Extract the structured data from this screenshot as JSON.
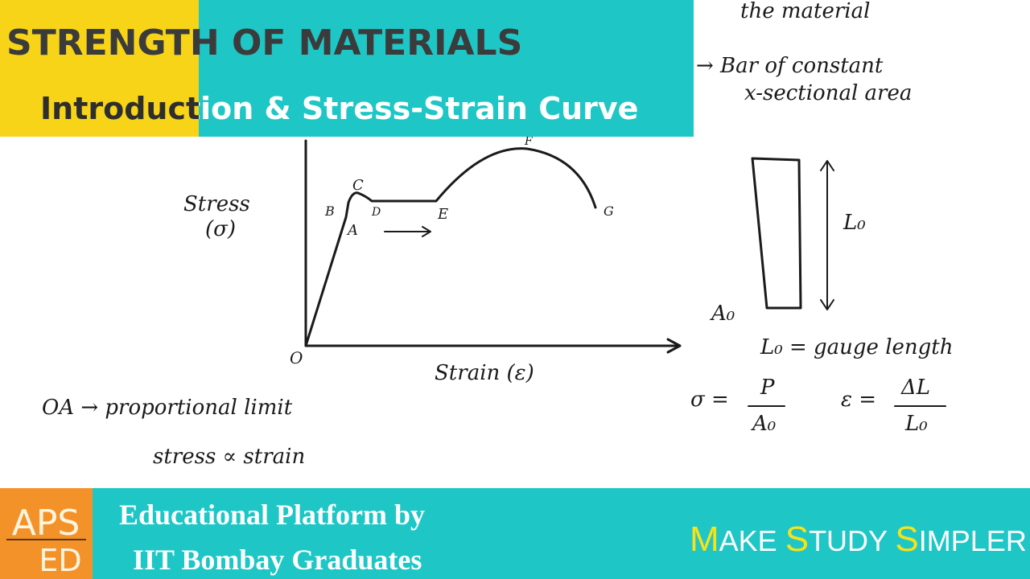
{
  "header": {
    "title": "STRENGTH OF MATERIALS",
    "subtitle": "Introduction & Stress-Strain Curve"
  },
  "notes": {
    "top_right": [
      "the material",
      "→ Bar of constant",
      "x-sectional area"
    ],
    "y_axis_label": [
      "Stress",
      "(σ)"
    ],
    "x_axis_label": "Strain (ε)",
    "origin": "O",
    "points": [
      "A",
      "B",
      "C",
      "D",
      "E",
      "F",
      "G"
    ],
    "definition": [
      "OA → proportional limit",
      "stress ∝ strain"
    ],
    "specimen_length": "L₀",
    "specimen_area": "A₀",
    "gauge": "L₀ = gauge length",
    "stress_formula": {
      "lhs": "σ =",
      "num": "P",
      "den": "A₀"
    },
    "strain_formula": {
      "lhs": "ε =",
      "num": "ΔL",
      "den": "L₀"
    }
  },
  "footer": {
    "logo": [
      "APS",
      "ED"
    ],
    "platform": [
      "Educational Platform by",
      "IIT Bombay Graduates"
    ],
    "tagline": [
      "M",
      "AKE ",
      "S",
      "TUDY ",
      "S",
      "IMPLER !!!"
    ]
  }
}
